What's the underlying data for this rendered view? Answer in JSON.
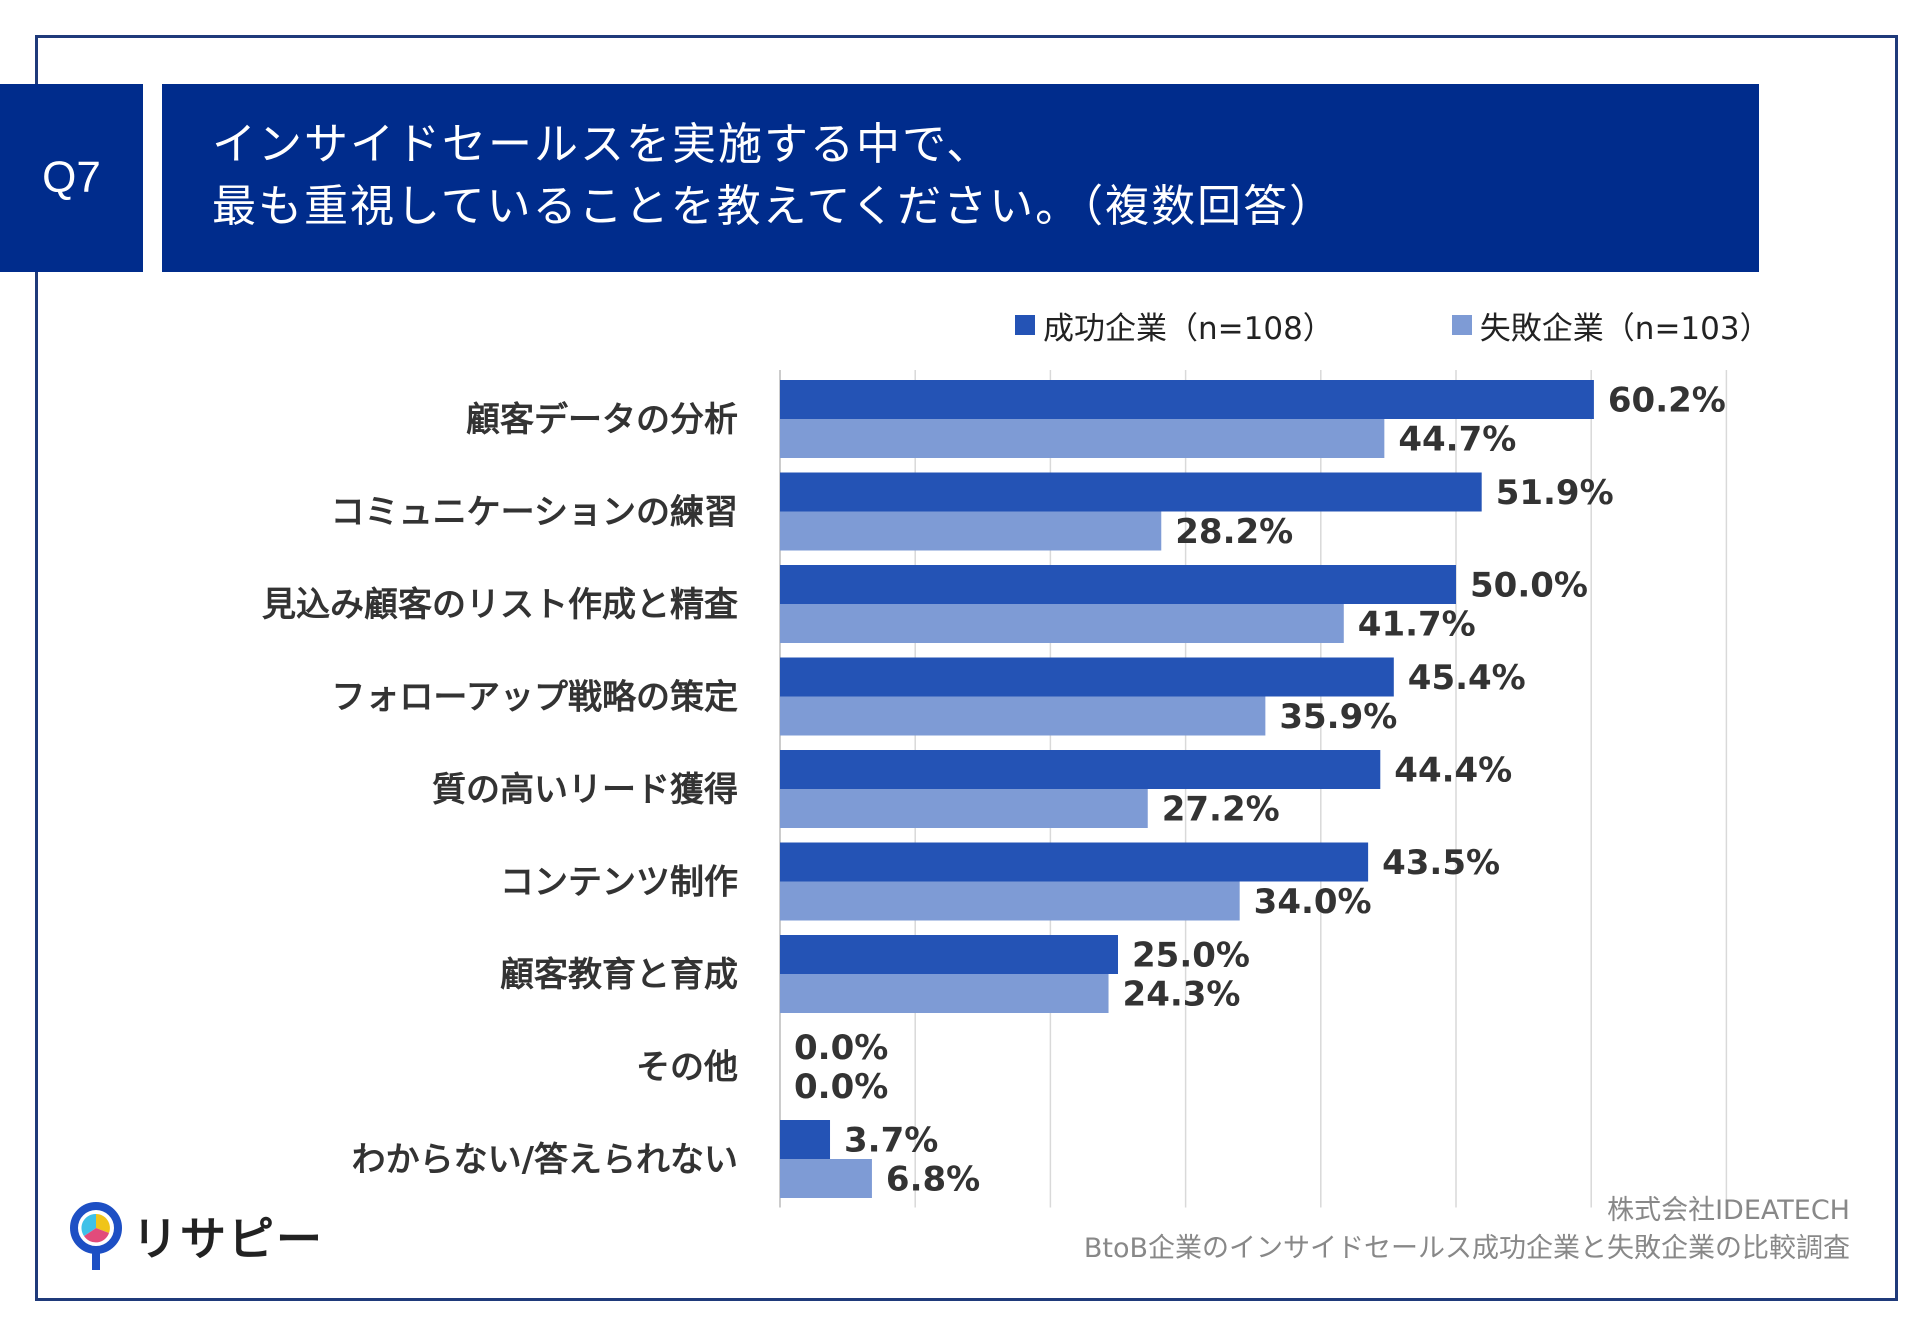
{
  "header": {
    "badge": "Q7",
    "title_line1": "インサイドセールスを実施する中で、",
    "title_line2": "最も重視していることを教えてください。（複数回答）"
  },
  "colors": {
    "success": "#2453b5",
    "failure": "#7e9bd5",
    "header_bg": "#002c8c",
    "frame": "#1f3a7a"
  },
  "chart_data": {
    "type": "bar",
    "orientation": "horizontal",
    "title": "インサイドセールスを実施する中で、最も重視していることを教えてください。（複数回答）",
    "categories": [
      "顧客データの分析",
      "コミュニケーションの練習",
      "見込み顧客のリスト作成と精査",
      "フォローアップ戦略の策定",
      "質の高いリード獲得",
      "コンテンツ制作",
      "顧客教育と育成",
      "その他",
      "わからない/答えられない"
    ],
    "series": [
      {
        "name": "成功企業（n=108）",
        "values": [
          60.2,
          51.9,
          50.0,
          45.4,
          44.4,
          43.5,
          25.0,
          0.0,
          3.7
        ],
        "labels": [
          "60.2%",
          "51.9%",
          "50.0%",
          "45.4%",
          "44.4%",
          "43.5%",
          "25.0%",
          "0.0%",
          "3.7%"
        ]
      },
      {
        "name": "失敗企業（n=103）",
        "values": [
          44.7,
          28.2,
          41.7,
          35.9,
          27.2,
          34.0,
          24.3,
          0.0,
          6.8
        ],
        "labels": [
          "44.7%",
          "28.2%",
          "41.7%",
          "35.9%",
          "27.2%",
          "34.0%",
          "24.3%",
          "0.0%",
          "6.8%"
        ]
      }
    ],
    "xlim": [
      0,
      70
    ],
    "grid": true,
    "legend_position": "top-right",
    "xlabel": "",
    "ylabel": ""
  },
  "footer": {
    "company": "株式会社IDEATECH",
    "survey": "BtoB企業のインサイドセールス成功企業と失敗企業の比較調査"
  },
  "logo": {
    "text": "リサピー"
  }
}
